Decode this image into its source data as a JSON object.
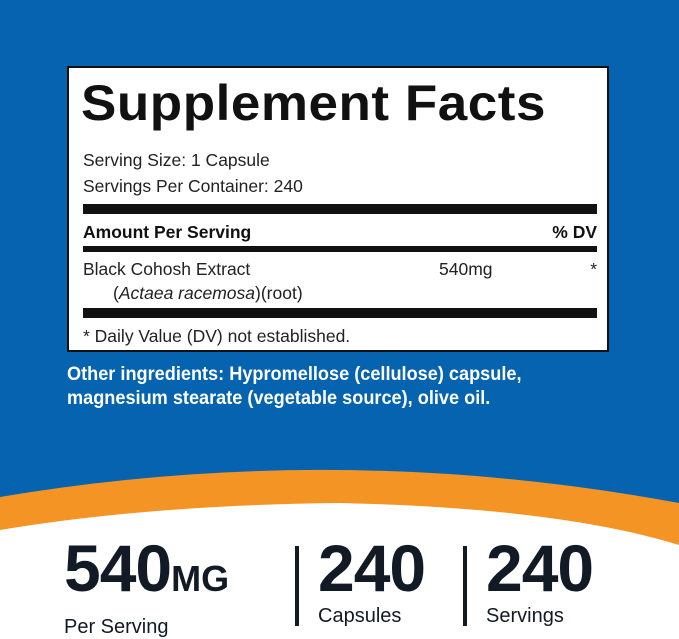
{
  "colors": {
    "background_blue": "#0563b0",
    "accent_orange": "#f39425",
    "text_dark": "#121a26"
  },
  "label": {
    "title": "Supplement Facts",
    "serving_size": "Serving Size: 1 Capsule",
    "servings_per_container": "Servings Per Container: 240",
    "amount_header": "Amount Per Serving",
    "dv_header": "% DV",
    "ingredient": {
      "name": "Black Cohosh Extract",
      "latin": "Actaea racemosa",
      "part": "(root)",
      "amount": "540mg",
      "dv": "*"
    },
    "footnote": "* Daily Value (DV) not established."
  },
  "other_ingredients": "Other ingredients: Hypromellose (cellulose) capsule, magnesium stearate (vegetable source), olive oil.",
  "stats": [
    {
      "value": "540",
      "unit": "MG",
      "label": "Per Serving"
    },
    {
      "value": "240",
      "label": "Capsules"
    },
    {
      "value": "240",
      "label": "Servings"
    }
  ]
}
